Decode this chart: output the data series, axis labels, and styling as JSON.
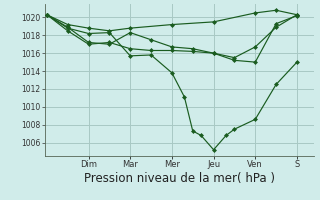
{
  "bg_color": "#d0ecea",
  "grid_color": "#a8c8c4",
  "line_color": "#1a5c20",
  "xlabel": "Pression niveau de la mer( hPa )",
  "xlabel_fontsize": 8.5,
  "ylim": [
    1004.5,
    1021.5
  ],
  "yticks": [
    1006,
    1008,
    1010,
    1012,
    1014,
    1016,
    1018,
    1020
  ],
  "day_labels": [
    "Dim",
    "Mar",
    "Mer",
    "Jeu",
    "Ven",
    "S"
  ],
  "day_positions": [
    1,
    2,
    3,
    4,
    5,
    6
  ],
  "xlim": [
    -0.05,
    6.4
  ],
  "lines": [
    {
      "x": [
        0.0,
        0.5,
        1.0,
        1.5,
        2.0,
        2.5,
        3.0,
        3.3,
        3.5,
        3.7,
        4.0,
        4.3,
        4.5,
        5.0,
        5.5,
        6.0
      ],
      "y": [
        1020.3,
        1018.8,
        1018.2,
        1018.3,
        1015.7,
        1015.8,
        1013.8,
        1011.1,
        1007.3,
        1006.8,
        1005.2,
        1006.8,
        1007.5,
        1008.6,
        1012.5,
        1015.0
      ],
      "marker": "D",
      "markersize": 2.0
    },
    {
      "x": [
        0.0,
        0.5,
        1.0,
        1.5,
        2.0,
        3.0,
        4.0,
        5.0,
        5.5,
        6.0
      ],
      "y": [
        1020.3,
        1019.2,
        1018.8,
        1018.5,
        1018.8,
        1019.2,
        1019.5,
        1020.5,
        1020.8,
        1020.3
      ],
      "marker": "D",
      "markersize": 2.0
    },
    {
      "x": [
        0.0,
        0.5,
        1.0,
        1.5,
        2.0,
        2.5,
        3.0,
        3.5,
        4.0,
        4.5,
        5.0,
        5.5,
        6.0
      ],
      "y": [
        1020.3,
        1018.5,
        1017.0,
        1017.2,
        1016.5,
        1016.3,
        1016.3,
        1016.2,
        1016.0,
        1015.2,
        1015.0,
        1019.3,
        1020.2
      ],
      "marker": "D",
      "markersize": 2.0
    },
    {
      "x": [
        0.0,
        0.5,
        1.0,
        1.5,
        2.0,
        2.5,
        3.0,
        3.5,
        4.0,
        4.5,
        5.0,
        5.5,
        6.0
      ],
      "y": [
        1020.3,
        1018.9,
        1017.2,
        1017.0,
        1018.3,
        1017.5,
        1016.7,
        1016.5,
        1016.0,
        1015.5,
        1016.7,
        1018.9,
        1020.3
      ],
      "marker": "D",
      "markersize": 2.0
    }
  ]
}
